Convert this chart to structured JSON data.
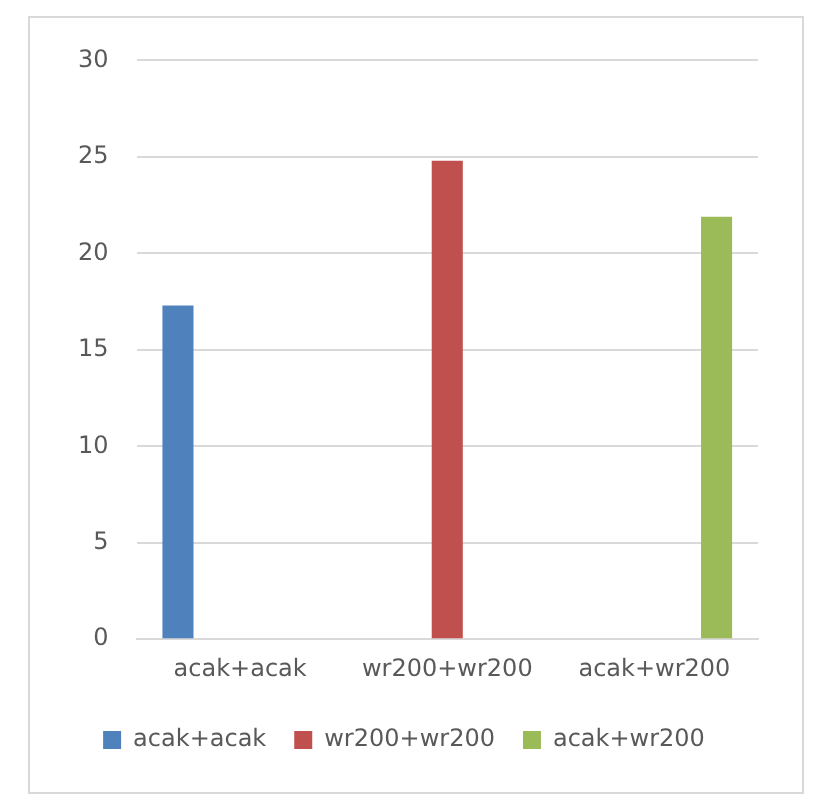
{
  "chart_data": {
    "type": "bar",
    "categories": [
      "acak+acak",
      "wr200+wr200",
      "acak+wr200"
    ],
    "series": [
      {
        "name": "acak+acak",
        "color": "#4f81bd",
        "values": [
          17.3,
          null,
          null
        ]
      },
      {
        "name": "wr200+wr200",
        "color": "#c0504d",
        "values": [
          null,
          24.8,
          null
        ]
      },
      {
        "name": "acak+wr200",
        "color": "#9bbb59",
        "values": [
          null,
          null,
          21.9
        ]
      }
    ],
    "ylim": [
      0,
      30
    ],
    "yticks": [
      0,
      5,
      10,
      15,
      20,
      25,
      30
    ],
    "grid": "y",
    "legend": "bottom"
  }
}
